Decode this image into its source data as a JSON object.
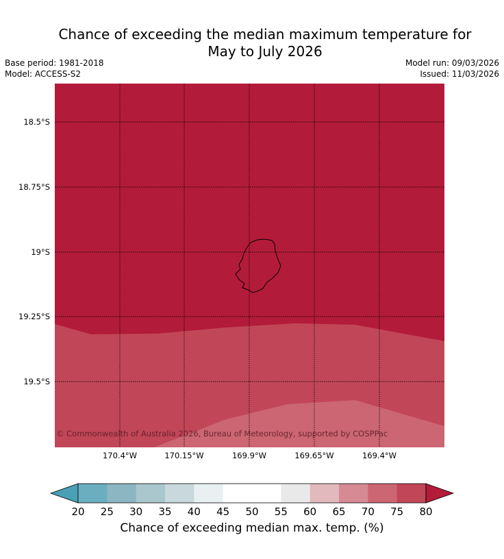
{
  "title": {
    "line1": "Chance of exceeding the median maximum temperature for",
    "line2": "May to July 2026"
  },
  "meta": {
    "base_period": "Base period: 1981-2018",
    "model": "Model: ACCESS-S2",
    "model_run": "Model run: 09/03/2026",
    "issued": "Issued: 11/03/2026"
  },
  "map": {
    "lat_labels": [
      "18.5°S",
      "18.75°S",
      "19°S",
      "19.25°S",
      "19.5°S"
    ],
    "lon_labels": [
      "170.4°W",
      "170.15°W",
      "169.9°W",
      "169.65°W",
      "169.4°W"
    ],
    "copyright": "© Commonwealth of Australia 2026, Bureau of Meteorology, supported by COSPPac",
    "region_colors": {
      "above_80": "#b31b3a",
      "75_80": "#c14658",
      "70_75": "#cb6672"
    }
  },
  "colorbar": {
    "label": "Chance of exceeding median max. temp. (%)",
    "ticks": [
      "20",
      "25",
      "30",
      "35",
      "40",
      "45",
      "50",
      "55",
      "60",
      "65",
      "70",
      "75",
      "80"
    ],
    "low_extend_color": "#4aa0b5",
    "high_extend_color": "#b31b3a",
    "bin_colors": [
      "#6baebf",
      "#8cb6c2",
      "#a9c7cc",
      "#c9d8dc",
      "#e9f0f2",
      "#ffffff",
      "#ffffff",
      "#e9e9ea",
      "#e2b9bd",
      "#d68a94",
      "#cb6672",
      "#c14658"
    ]
  }
}
